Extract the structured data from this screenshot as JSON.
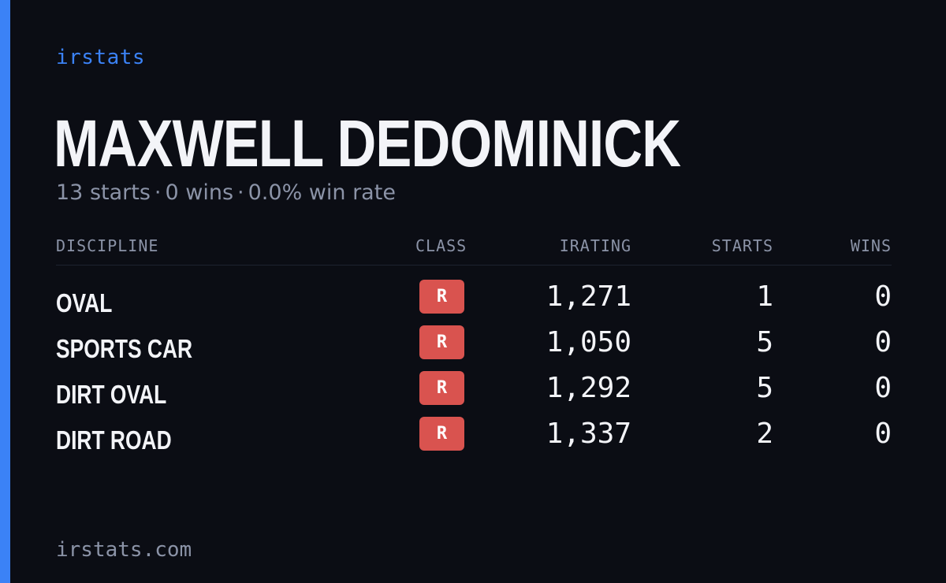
{
  "brand": {
    "name": "irstats",
    "accent_color": "#3b82f6"
  },
  "driver": {
    "name": "MAXWELL DEDOMINICK",
    "summary": {
      "starts": "13 starts",
      "wins": "0 wins",
      "win_rate": "0.0% win rate",
      "separator": "·"
    }
  },
  "table": {
    "headers": {
      "discipline": "DISCIPLINE",
      "class": "CLASS",
      "irating": "IRATING",
      "starts": "STARTS",
      "wins": "WINS"
    },
    "rows": [
      {
        "discipline": "OVAL",
        "class": "R",
        "irating": "1,271",
        "starts": "1",
        "wins": "0"
      },
      {
        "discipline": "SPORTS CAR",
        "class": "R",
        "irating": "1,050",
        "starts": "5",
        "wins": "0"
      },
      {
        "discipline": "DIRT OVAL",
        "class": "R",
        "irating": "1,292",
        "starts": "5",
        "wins": "0"
      },
      {
        "discipline": "DIRT ROAD",
        "class": "R",
        "irating": "1,337",
        "starts": "2",
        "wins": "0"
      }
    ],
    "class_badge_color": "#d9534f"
  },
  "footer": {
    "url": "irstats.com"
  }
}
